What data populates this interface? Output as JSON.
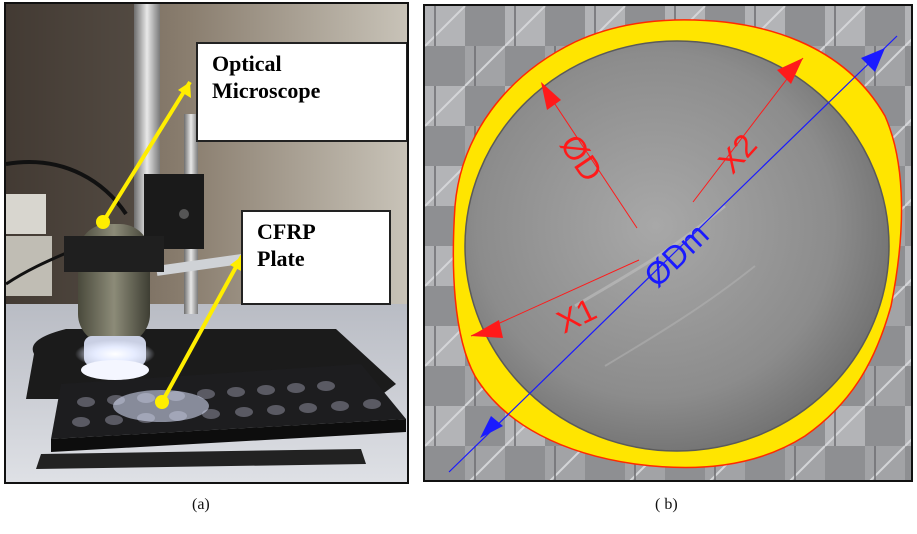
{
  "panel_a": {
    "callout_microscope": {
      "line1": "Optical",
      "line2": "Microscope"
    },
    "callout_plate": {
      "line1": "CFRP",
      "line2": "Plate"
    },
    "caption": "(a)"
  },
  "panel_b": {
    "labels": {
      "diameter": "ØD",
      "max_diameter": "ØDm",
      "x1": "X1",
      "x2": "X2"
    },
    "caption": "( b)"
  },
  "colors": {
    "arrow_yellow": "#ffee00",
    "delamination_yellow": "#ffe500",
    "red_annotation": "#ff1a1a",
    "blue_annotation": "#1a1aff"
  }
}
